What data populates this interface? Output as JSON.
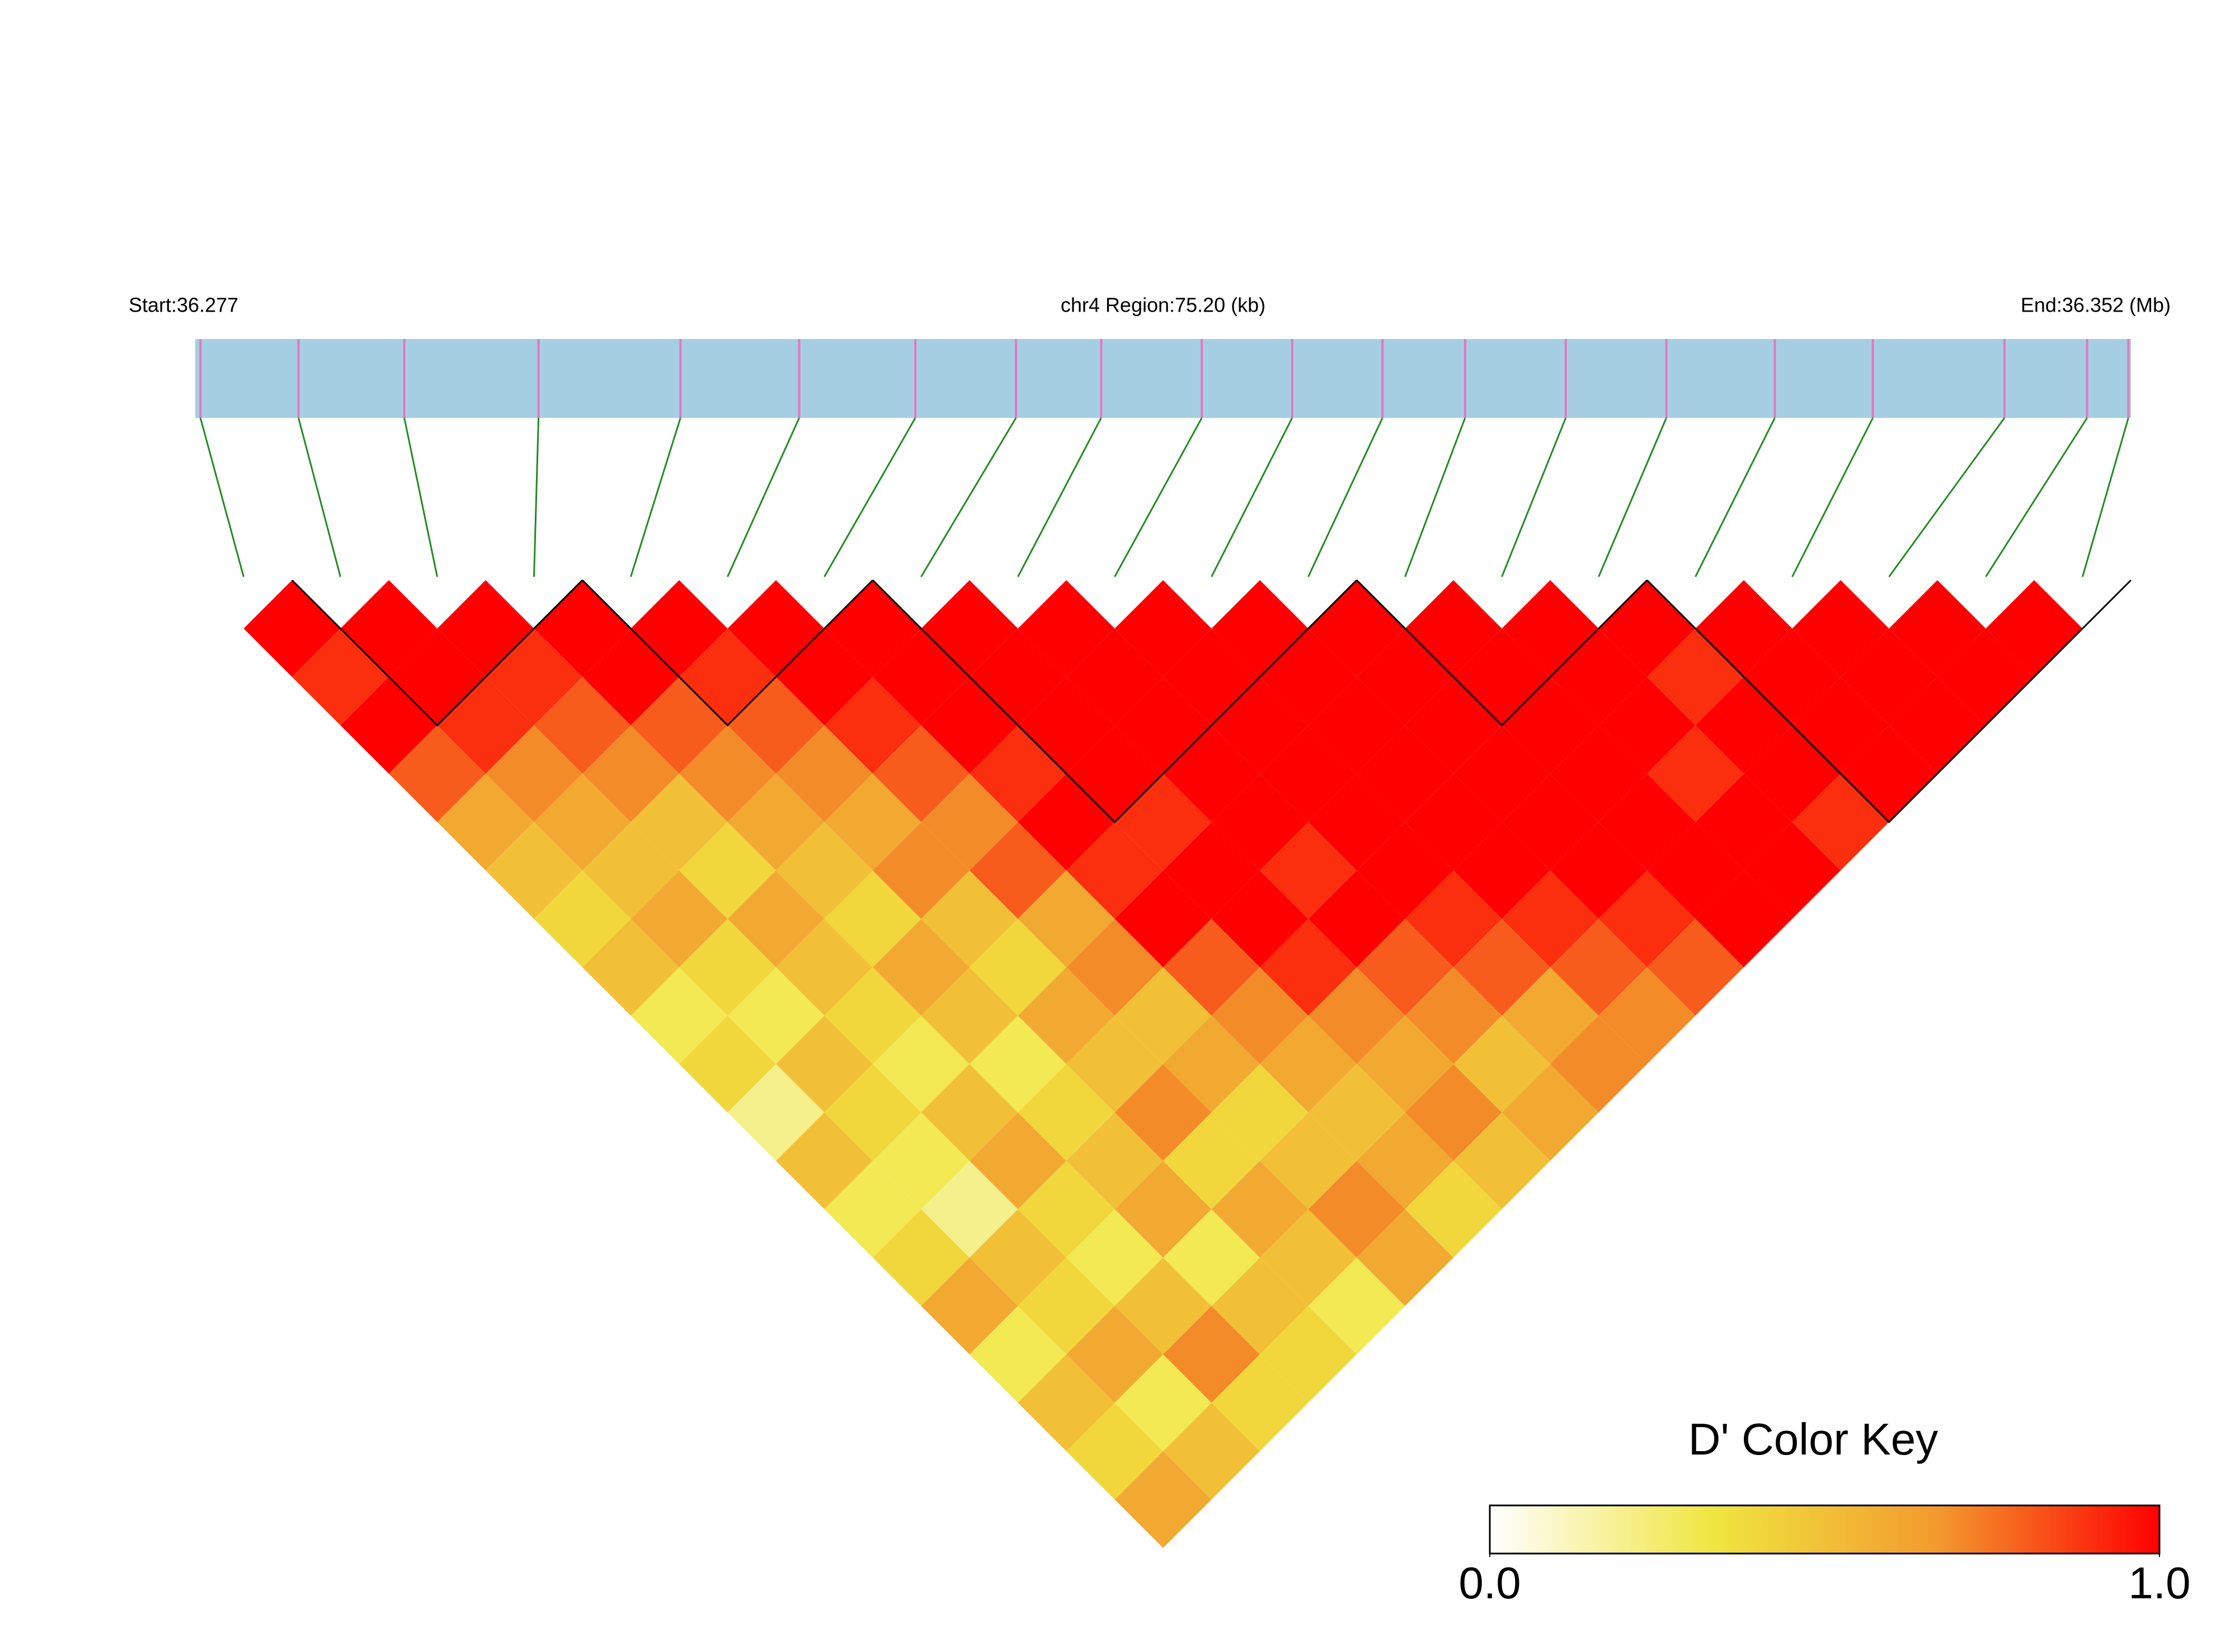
{
  "chart_data": {
    "type": "ld-heatmap",
    "start_label": "Start:36.277",
    "region_label": "chr4 Region:75.20 (kb)",
    "end_label": "End:36.352 (Mb)",
    "xlim": [
      36.277,
      36.352
    ],
    "snp_positions": [
      36.2772,
      36.281,
      36.2851,
      36.2903,
      36.2958,
      36.3004,
      36.3049,
      36.3088,
      36.3121,
      36.316,
      36.3195,
      36.323,
      36.3262,
      36.3301,
      36.334,
      36.3382,
      36.342,
      36.3471,
      36.3503,
      36.3519
    ],
    "bar_color": "#a6cee3",
    "snp_color": "#e377c2",
    "connector_color": "#228b22",
    "ld": [
      [
        1,
        0.9,
        1,
        0.8,
        0.6,
        0.5,
        0.4,
        0.5,
        0.3,
        0.4,
        0.2,
        0.5,
        0.3,
        0.4,
        0.6,
        0.3,
        0.5,
        0.4,
        0.6
      ],
      [
        1,
        1,
        0.9,
        0.7,
        0.6,
        0.5,
        0.6,
        0.4,
        0.3,
        0.5,
        0.4,
        0.3,
        0.2,
        0.5,
        0.4,
        0.6,
        0.3,
        0.5
      ],
      [
        1,
        0.9,
        0.8,
        0.7,
        0.5,
        0.4,
        0.6,
        0.5,
        0.4,
        0.3,
        0.5,
        0.6,
        0.4,
        0.3,
        0.5,
        0.7,
        0.4
      ],
      [
        1,
        1,
        0.8,
        0.7,
        0.6,
        0.5,
        0.4,
        0.6,
        0.5,
        0.3,
        0.4,
        0.5,
        0.6,
        0.3,
        0.5,
        0.4
      ],
      [
        1,
        0.9,
        0.8,
        0.7,
        0.6,
        0.7,
        0.5,
        0.4,
        0.6,
        0.5,
        0.7,
        0.4,
        0.6,
        0.5,
        0.3
      ],
      [
        1,
        1,
        0.9,
        0.8,
        0.7,
        0.8,
        0.6,
        0.7,
        0.5,
        0.6,
        0.4,
        0.5,
        0.7,
        0.6
      ],
      [
        1,
        1,
        1,
        0.9,
        1,
        0.9,
        1,
        0.8,
        0.7,
        0.6,
        0.5,
        0.6,
        0.4
      ],
      [
        1,
        1,
        1,
        1,
        0.9,
        1,
        1,
        0.9,
        0.7,
        0.6,
        0.7,
        0.5
      ],
      [
        1,
        1,
        1,
        1,
        1,
        0.9,
        1,
        0.8,
        0.7,
        0.5,
        0.6
      ],
      [
        1,
        1,
        1,
        1,
        1,
        1,
        0.9,
        0.8,
        0.6,
        0.7
      ],
      [
        1,
        1,
        1,
        1,
        1,
        1,
        0.9,
        0.8,
        0.7
      ],
      [
        1,
        1,
        1,
        1,
        1,
        1,
        0.9,
        0.8
      ],
      [
        1,
        1,
        1,
        1,
        1,
        1,
        1
      ],
      [
        1,
        1,
        1,
        0.9,
        1,
        1
      ],
      [
        1,
        0.9,
        1,
        1,
        0.9
      ],
      [
        1,
        1,
        1,
        1
      ],
      [
        1,
        1,
        1
      ],
      [
        1,
        1
      ],
      [
        1
      ]
    ],
    "blocks": [
      [
        1,
        3
      ],
      [
        4,
        6
      ],
      [
        7,
        11
      ],
      [
        12,
        14
      ],
      [
        15,
        19
      ]
    ],
    "colormap": [
      "#ffffff",
      "#f0e640",
      "#f39a2e",
      "#ff0000"
    ],
    "key_title": "D' Color Key",
    "key_lim": [
      0,
      1
    ],
    "key_ticks": [
      {
        "value": 0,
        "label": "0.0"
      },
      {
        "value": 1,
        "label": "1.0"
      }
    ]
  }
}
